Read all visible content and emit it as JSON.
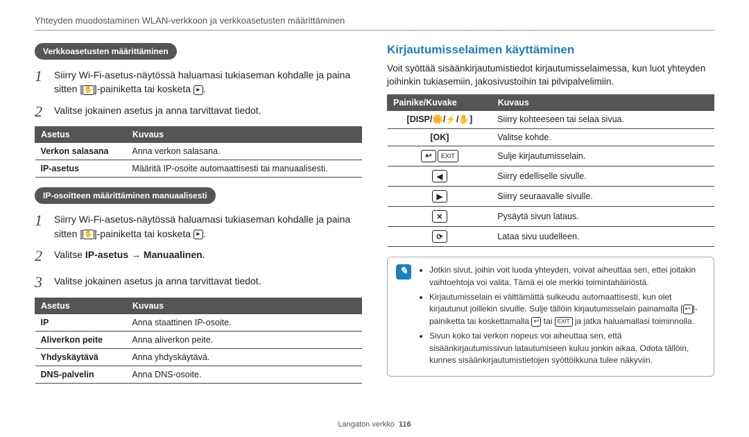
{
  "header": "Yhteyden muodostaminen WLAN-verkkoon ja verkkoasetusten määrittäminen",
  "footer": {
    "section": "Langaton verkko",
    "page": "116"
  },
  "left": {
    "section1": {
      "pill": "Verkkoasetusten määrittäminen",
      "step1_a": "Siirry Wi-Fi-asetus-näytössä haluamasi tukiaseman kohdalle ja paina sitten [",
      "step1_b": "]-painiketta tai kosketa ",
      "step1_c": ".",
      "step2": "Valitse jokainen asetus ja anna tarvittavat tiedot.",
      "table": {
        "h1": "Asetus",
        "h2": "Kuvaus",
        "rows": [
          [
            "Verkon salasana",
            "Anna verkon salasana."
          ],
          [
            "IP-asetus",
            "Määritä IP-osoite automaattisesti tai manuaalisesti."
          ]
        ]
      }
    },
    "section2": {
      "pill": "IP-osoitteen määrittäminen manuaalisesti",
      "step1_a": "Siirry Wi-Fi-asetus-näytössä haluamasi tukiaseman kohdalle ja paina sitten [",
      "step1_b": "]-painiketta tai kosketa ",
      "step1_c": ".",
      "step2_a": "Valitse ",
      "step2_b": "IP-asetus",
      "step2_arrow": " → ",
      "step2_c": "Manuaalinen",
      "step2_d": ".",
      "step3": "Valitse jokainen asetus ja anna tarvittavat tiedot.",
      "table": {
        "h1": "Asetus",
        "h2": "Kuvaus",
        "rows": [
          [
            "IP",
            "Anna staattinen IP-osoite."
          ],
          [
            "Aliverkon peite",
            "Anna aliverkon peite."
          ],
          [
            "Yhdyskäytävä",
            "Anna yhdyskäytävä."
          ],
          [
            "DNS-palvelin",
            "Anna DNS-osoite."
          ]
        ]
      }
    }
  },
  "right": {
    "heading": "Kirjautumisselaimen käyttäminen",
    "intro": "Voit syöttää sisäänkirjautumistiedot kirjautumisselaimessa, kun luot yhteyden joihinkin tukiasemiin, jakosivustoihin tai pilvipalvelimiin.",
    "table": {
      "h1": "Painike/Kuvake",
      "h2": "Kuvaus",
      "rows": [
        {
          "keys": [
            "DISP",
            "🌼",
            "⚡",
            "✋"
          ],
          "bracket": true,
          "desc": "Siirry kohteeseen tai selaa sivua."
        },
        {
          "keys": [
            "OK"
          ],
          "bracket": true,
          "desc": "Valitse kohde."
        },
        {
          "keys": [
            "↩",
            "EXIT"
          ],
          "bracket": false,
          "exit": true,
          "desc": "Sulje kirjautumisselain."
        },
        {
          "keys": [
            "◀"
          ],
          "bracket": false,
          "desc": "Siirry edelliselle sivulle."
        },
        {
          "keys": [
            "▶"
          ],
          "bracket": false,
          "desc": "Siirry seuraavalle sivulle."
        },
        {
          "keys": [
            "✕"
          ],
          "bracket": false,
          "desc": "Pysäytä sivun lataus."
        },
        {
          "keys": [
            "⟳"
          ],
          "bracket": false,
          "desc": "Lataa sivu uudelleen."
        }
      ]
    },
    "note": {
      "items": [
        "Jotkin sivut, joihin voit luoda yhteyden, voivat aiheuttaa sen, ettei joitakin vaihtoehtoja voi valita. Tämä ei ole merkki toimintahäiriöstä.",
        {
          "a": "Kirjautumisselain ei välttämättä sulkeudu automaattisesti, kun olet kirjautunut joillekin sivuille. Sulje tällöin kirjautumisselain painamalla [",
          "b": "]-painiketta tai koskettamalla ",
          "c": " tai ",
          "d": " ja jatka haluamallasi toiminnolla."
        },
        "Sivun koko tai verkon nopeus voi aiheuttaa sen, että sisäänkirjautumissivun latautumiseen kuluu jonkin aikaa. Odota tällöin, kunnes sisäänkirjautumistietojen syöttöikkuna tulee näkyviin."
      ]
    }
  }
}
